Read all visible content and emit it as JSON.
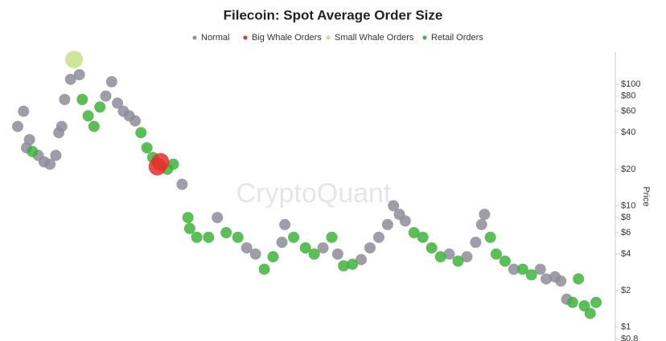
{
  "chart_data": {
    "type": "scatter",
    "title": "Filecoin: Spot Average Order Size",
    "y_axis_label": "Price",
    "watermark": "CryptoQuant",
    "log_scale": true,
    "legend": "top",
    "xlim": [
      0,
      100
    ],
    "ylim": [
      0.77,
      184
    ],
    "yticks": [
      {
        "value": 0.8,
        "label": "$0.8"
      },
      {
        "value": 1,
        "label": "$1"
      },
      {
        "value": 2,
        "label": "$2"
      },
      {
        "value": 4,
        "label": "$4"
      },
      {
        "value": 6,
        "label": "$6"
      },
      {
        "value": 8,
        "label": "$8"
      },
      {
        "value": 10,
        "label": "$10"
      },
      {
        "value": 20,
        "label": "$20"
      },
      {
        "value": 40,
        "label": "$40"
      },
      {
        "value": 60,
        "label": "$60"
      },
      {
        "value": 80,
        "label": "$80"
      },
      {
        "value": 100,
        "label": "$100"
      }
    ],
    "series": [
      {
        "name": "Normal",
        "color": "#8e8c99",
        "x": [
          0,
          1,
          1.5,
          2,
          3.5,
          4.5,
          5.5,
          6.5,
          7,
          7.5,
          8,
          9,
          10.5,
          15,
          16,
          17,
          18,
          19,
          20,
          28,
          34,
          39,
          40.5,
          45,
          45.5,
          52,
          54.5,
          58.5,
          60,
          61.5,
          63,
          64,
          65,
          66,
          73.5,
          76.5,
          78,
          79,
          79.5,
          84.5,
          89,
          90,
          91.5,
          92.5,
          93.5
        ],
        "values": [
          45,
          60,
          30,
          35,
          26,
          23,
          22,
          26,
          40,
          45,
          75,
          110,
          120,
          80,
          105,
          70,
          60,
          55,
          50,
          15,
          8,
          4.5,
          4,
          5,
          7,
          4.5,
          4,
          3.6,
          4.5,
          5.5,
          7,
          10,
          8.5,
          7.5,
          4,
          3.8,
          5,
          7,
          8.5,
          3,
          3,
          2.5,
          2.6,
          2.4,
          1.7
        ]
      },
      {
        "name": "Big Whale Orders",
        "color": "#e0302c",
        "x": [
          23.8,
          24.3
        ],
        "values": [
          21,
          23
        ]
      },
      {
        "name": "Small Whale Orders",
        "color": "#c5e08a",
        "x": [
          9.6
        ],
        "values": [
          160
        ]
      },
      {
        "name": "Retail Orders",
        "color": "#3eb33a",
        "x": [
          2.5,
          11,
          12,
          13,
          14,
          21,
          22,
          23,
          25.5,
          26.5,
          29,
          29.3,
          30.5,
          32.5,
          35.5,
          37.5,
          42,
          43.5,
          47,
          49,
          50.5,
          53.5,
          55.5,
          57,
          67.5,
          69,
          70.5,
          72,
          75,
          80.5,
          81.5,
          83,
          86,
          87.5,
          94.5,
          95.5,
          96.5,
          97.5,
          98.5
        ],
        "values": [
          28,
          75,
          55,
          45,
          65,
          40,
          30,
          25,
          20,
          22,
          8,
          6.5,
          5.5,
          5.5,
          6,
          5.5,
          3,
          3.8,
          5.5,
          4.5,
          4,
          5.5,
          3.2,
          3.3,
          6,
          5.5,
          4.5,
          3.8,
          3.5,
          5.5,
          4,
          3.5,
          3,
          2.7,
          1.6,
          2.5,
          1.5,
          1.3,
          1.6
        ]
      }
    ]
  }
}
